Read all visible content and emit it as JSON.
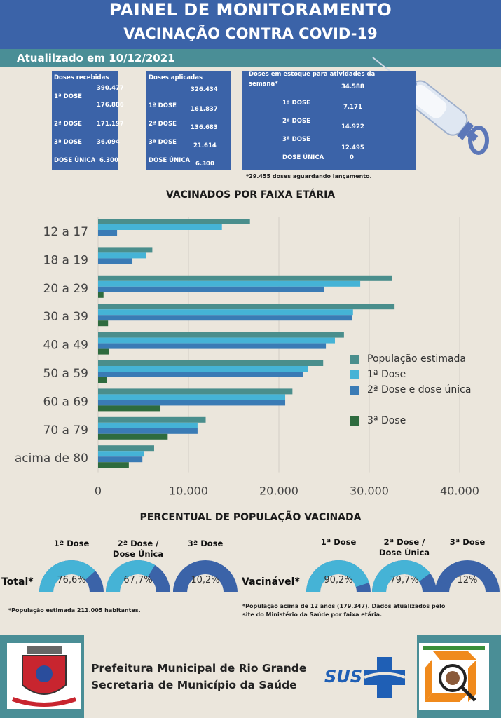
{
  "header": {
    "title": "PAINEL DE MONITORAMENTO",
    "subtitle": "VACINAÇÃO CONTRA COVID-19"
  },
  "update_text": "Atualilzado em 10/12/2021",
  "received": {
    "title": "Doses recebidas",
    "total": "390.477",
    "rows": [
      {
        "label": "1ª DOSE",
        "value": "176.886"
      },
      {
        "label": "2ª DOSE",
        "value": "171.197"
      },
      {
        "label": "3ª DOSE",
        "value": "36.094"
      },
      {
        "label": "DOSE ÚNICA",
        "value": "6.300"
      }
    ]
  },
  "applied": {
    "title": "Doses aplicadas",
    "total": "326.434",
    "rows": [
      {
        "label": "1ª DOSE",
        "value": "161.837"
      },
      {
        "label": "2ª DOSE",
        "value": "136.683"
      },
      {
        "label": "3ª DOSE",
        "value": "21.614"
      },
      {
        "label": "DOSE ÚNICA",
        "value": "6.300"
      }
    ]
  },
  "stock": {
    "title_line1": "Doses em estoque para atividades da",
    "title_line2": "semana*",
    "total": "34.588",
    "rows": [
      {
        "label": "1ª DOSE",
        "value": "7.171"
      },
      {
        "label": "2ª DOSE",
        "value": "14.922"
      },
      {
        "label": "3ª DOSE",
        "value": "12.495"
      },
      {
        "label": "DOSE ÚNICA",
        "value": "0"
      }
    ],
    "note": "*29.455 doses aguardando lançamento."
  },
  "chart_title": "VACINADOS POR FAIXA ETÁRIA",
  "chart_data": {
    "type": "bar",
    "orientation": "horizontal",
    "title": "VACINADOS POR FAIXA ETÁRIA",
    "categories": [
      "12 a 17",
      "18 a 19",
      "20 a 29",
      "30 a 39",
      "40 a 49",
      "50 a 59",
      "60 a 69",
      "70 a 79",
      "acima de 80"
    ],
    "series": [
      {
        "name": "População estimada",
        "color": "#4a8e8c",
        "values": [
          16800,
          6000,
          32500,
          32800,
          27200,
          24900,
          21500,
          11900,
          6200
        ]
      },
      {
        "name": "1ª Dose",
        "color": "#45b3d6",
        "values": [
          13700,
          5300,
          29000,
          28200,
          26200,
          23200,
          20700,
          11000,
          5100
        ]
      },
      {
        "name": "2ª Dose e dose única",
        "color": "#3a7bb5",
        "values": [
          2100,
          3800,
          25000,
          28100,
          25200,
          22700,
          20700,
          11000,
          4900
        ]
      },
      {
        "name": "3ª Dose",
        "color": "#2e6b3e",
        "values": [
          0,
          0,
          600,
          1100,
          1200,
          1000,
          6900,
          7700,
          3400
        ]
      }
    ],
    "xlim": [
      0,
      40000
    ],
    "x_ticks": [
      "0",
      "10.000",
      "20.000",
      "30.000",
      "40.000"
    ],
    "grid": true,
    "legend_position": "right"
  },
  "percent_title": "PERCENTUAL DE POPULAÇÃO VACINADA",
  "gauges_total": {
    "label": "Total*",
    "items": [
      {
        "label_line1": "1ª Dose",
        "label_line2": "",
        "value": "76,6%",
        "fraction": 0.766,
        "color": "#45b3d6"
      },
      {
        "label_line1": "2ª Dose /",
        "label_line2": "Dose Única",
        "value": "67,7%",
        "fraction": 0.677,
        "color": "#45b3d6"
      },
      {
        "label_line1": "3ª Dose",
        "label_line2": "",
        "value": "10,2%",
        "fraction": 0.102,
        "color": "#3b63a8"
      }
    ],
    "note": "*População estimada 211.005 habitantes."
  },
  "gauges_vac": {
    "label": "Vacinável*",
    "items": [
      {
        "label_line1": "1ª Dose",
        "label_line2": "",
        "value": "90,2%",
        "fraction": 0.902,
        "color": "#45b3d6"
      },
      {
        "label_line1": "2ª Dose /",
        "label_line2": "Dose Única",
        "value": "79,7%",
        "fraction": 0.797,
        "color": "#45b3d6"
      },
      {
        "label_line1": "3ª Dose",
        "label_line2": "",
        "value": "12%",
        "fraction": 0.12,
        "color": "#3b63a8"
      }
    ],
    "note_line1": "*População acima de 12 anos (179.347). Dados atualizados pelo",
    "note_line2": "site do Ministério da Saúde por faixa etária."
  },
  "footer": {
    "line1": "Prefeitura Municipal de Rio Grande",
    "line2": "Secretaria de Município da Saúde",
    "sus": "SUS"
  }
}
